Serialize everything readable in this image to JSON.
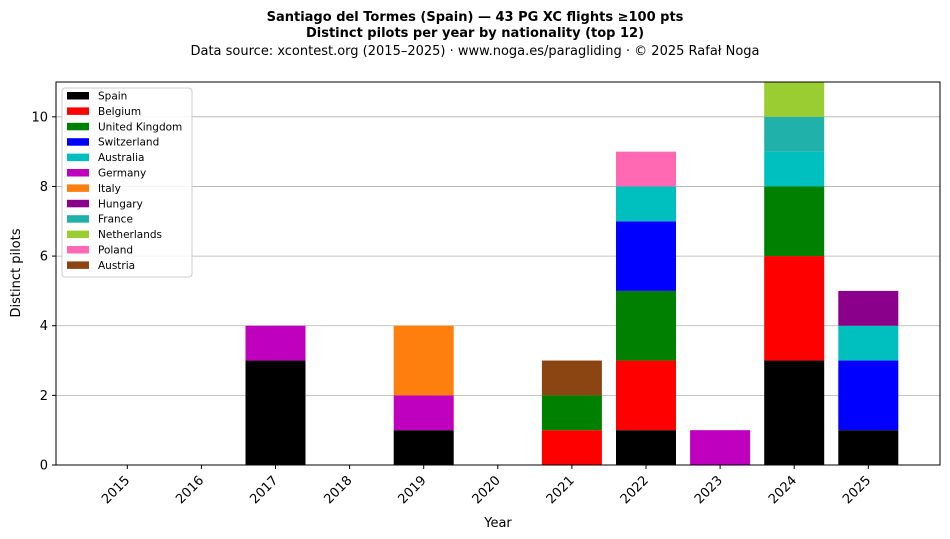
{
  "chart_data": {
    "type": "bar",
    "stacked": true,
    "title": "Santiago del Tormes (Spain)  —  43 PG XC flights ≥100 pts",
    "subtitle": "Distinct pilots per year by nationality (top 12)",
    "source": "Data source: xcontest.org (2015–2025)  ·  www.noga.es/paragliding  ·  © 2025 Rafał Noga",
    "xlabel": "Year",
    "ylabel": "Distinct pilots",
    "ylim": [
      0,
      11
    ],
    "yticks": [
      0,
      2,
      4,
      6,
      8,
      10
    ],
    "grid": "horizontal",
    "legend_position": "top-left",
    "categories": [
      "2015",
      "2016",
      "2017",
      "2018",
      "2019",
      "2020",
      "2021",
      "2022",
      "2023",
      "2024",
      "2025"
    ],
    "series": [
      {
        "name": "Spain",
        "color": "#000000",
        "values": [
          0,
          0,
          3,
          0,
          1,
          0,
          0,
          1,
          0,
          3,
          1
        ]
      },
      {
        "name": "Belgium",
        "color": "#ff0000",
        "values": [
          0,
          0,
          0,
          0,
          0,
          0,
          1,
          2,
          0,
          3,
          0
        ]
      },
      {
        "name": "United Kingdom",
        "color": "#008000",
        "values": [
          0,
          0,
          0,
          0,
          0,
          0,
          1,
          2,
          0,
          2,
          0
        ]
      },
      {
        "name": "Switzerland",
        "color": "#0000ff",
        "values": [
          0,
          0,
          0,
          0,
          0,
          0,
          0,
          2,
          0,
          0,
          2
        ]
      },
      {
        "name": "Australia",
        "color": "#00bfbf",
        "values": [
          0,
          0,
          0,
          0,
          0,
          0,
          0,
          1,
          0,
          1,
          1
        ]
      },
      {
        "name": "Germany",
        "color": "#bf00bf",
        "values": [
          0,
          0,
          1,
          0,
          1,
          0,
          0,
          0,
          1,
          0,
          0
        ]
      },
      {
        "name": "Italy",
        "color": "#ff7f0e",
        "values": [
          0,
          0,
          0,
          0,
          2,
          0,
          0,
          0,
          0,
          0,
          0
        ]
      },
      {
        "name": "Hungary",
        "color": "#8b008b",
        "values": [
          0,
          0,
          0,
          0,
          0,
          0,
          0,
          0,
          0,
          0,
          1
        ]
      },
      {
        "name": "France",
        "color": "#20b2aa",
        "values": [
          0,
          0,
          0,
          0,
          0,
          0,
          0,
          0,
          0,
          1,
          0
        ]
      },
      {
        "name": "Netherlands",
        "color": "#9acd32",
        "values": [
          0,
          0,
          0,
          0,
          0,
          0,
          0,
          0,
          0,
          1,
          0
        ]
      },
      {
        "name": "Poland",
        "color": "#ff69b4",
        "values": [
          0,
          0,
          0,
          0,
          0,
          0,
          0,
          1,
          0,
          0,
          0
        ]
      },
      {
        "name": "Austria",
        "color": "#8b4513",
        "values": [
          0,
          0,
          0,
          0,
          0,
          0,
          1,
          0,
          0,
          0,
          0
        ]
      }
    ]
  }
}
